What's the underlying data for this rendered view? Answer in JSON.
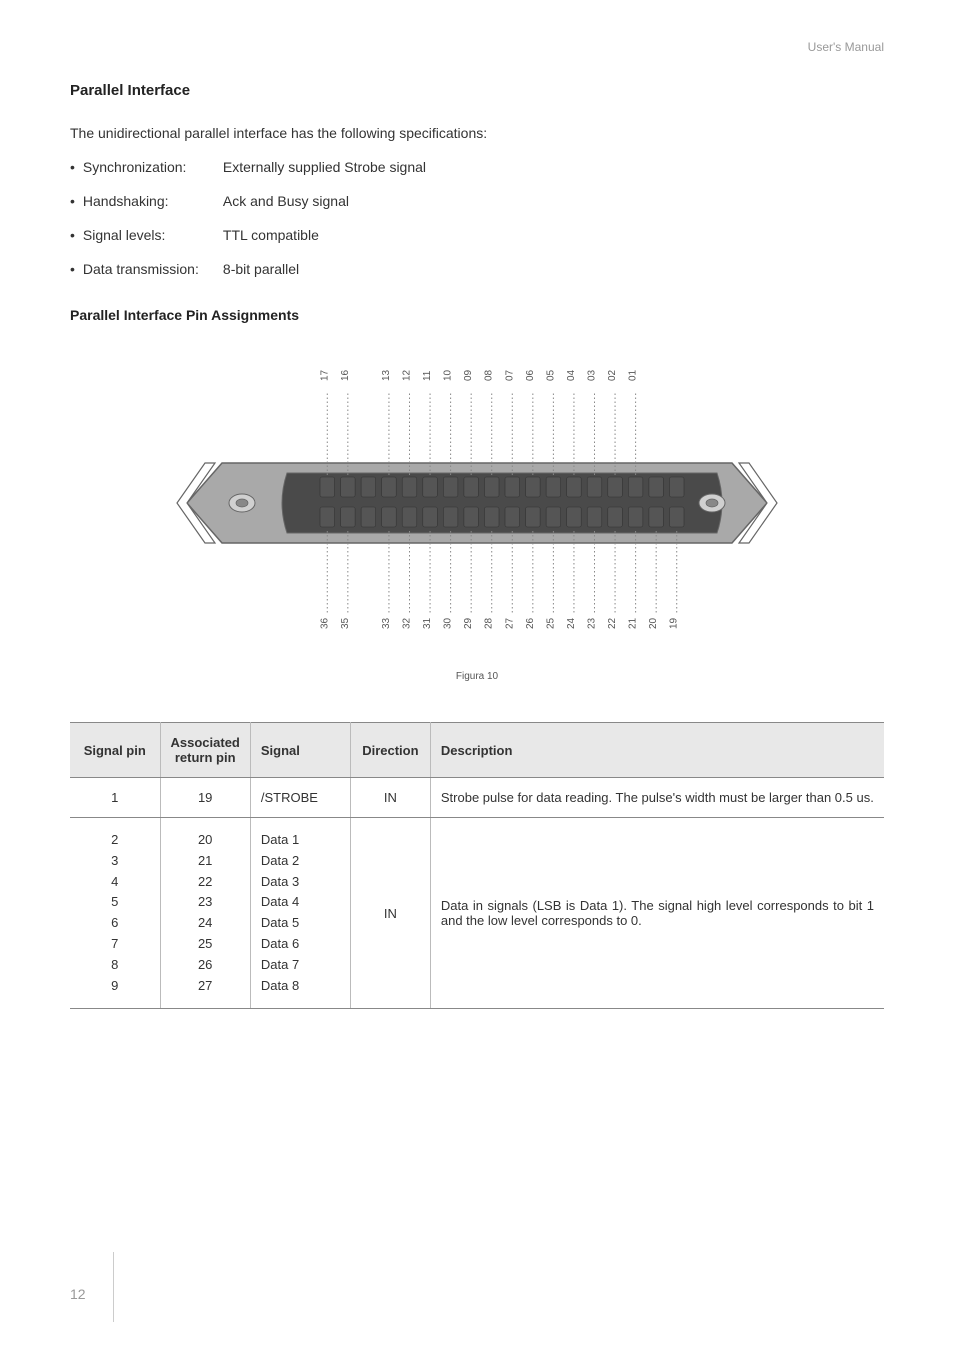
{
  "header": {
    "manual_label": "User's Manual"
  },
  "section": {
    "title": "Parallel Interface",
    "intro": "The unidirectional parallel interface has the following specifications:",
    "specs": [
      {
        "label": "Synchronization:",
        "value": "Externally supplied Strobe signal"
      },
      {
        "label": "Handshaking:",
        "value": "Ack and Busy signal"
      },
      {
        "label": "Signal levels:",
        "value": "TTL compatible"
      },
      {
        "label": "Data transmission:",
        "value": "8-bit parallel"
      }
    ],
    "sub_title": "Parallel Interface Pin Assignments",
    "figure_caption": "Figura 10"
  },
  "diagram": {
    "top_pins": [
      "17",
      "16",
      "13",
      "12",
      "11",
      "10",
      "09",
      "08",
      "07",
      "06",
      "05",
      "04",
      "03",
      "02",
      "01"
    ],
    "bottom_pins": [
      "36",
      "35",
      "33",
      "32",
      "31",
      "30",
      "29",
      "28",
      "27",
      "26",
      "25",
      "24",
      "23",
      "22",
      "21",
      "20",
      "19"
    ],
    "colors": {
      "connector_body": "#a9a9a9",
      "connector_stroke": "#666666",
      "pin_fill": "#555555",
      "pin_stroke": "#333333",
      "screw_fill": "#d0d0d0",
      "dotted": "#888888",
      "label": "#555555"
    },
    "top_gap_after": 2,
    "bottom_gap_after": 2
  },
  "table": {
    "headers": {
      "pin": "Signal pin",
      "return": "Associated return pin",
      "signal": "Signal",
      "direction": "Direction",
      "description": "Description"
    },
    "rows": [
      {
        "pin": "1",
        "return": "19",
        "signal": "/STROBE",
        "direction": "IN",
        "description": "Strobe pulse for data reading. The pulse's width must be larger than 0.5 us."
      },
      {
        "pin": "2\n3\n4\n5\n6\n7\n8\n9",
        "return": "20\n21\n22\n23\n24\n25\n26\n27",
        "signal": "Data 1\nData 2\nData 3\nData 4\nData 5\nData 6\nData 7\nData 8",
        "direction": "IN",
        "description": "Data in signals (LSB is Data 1). The signal high level corresponds to bit 1 and the low level corresponds to 0."
      }
    ]
  },
  "page_number": "12"
}
